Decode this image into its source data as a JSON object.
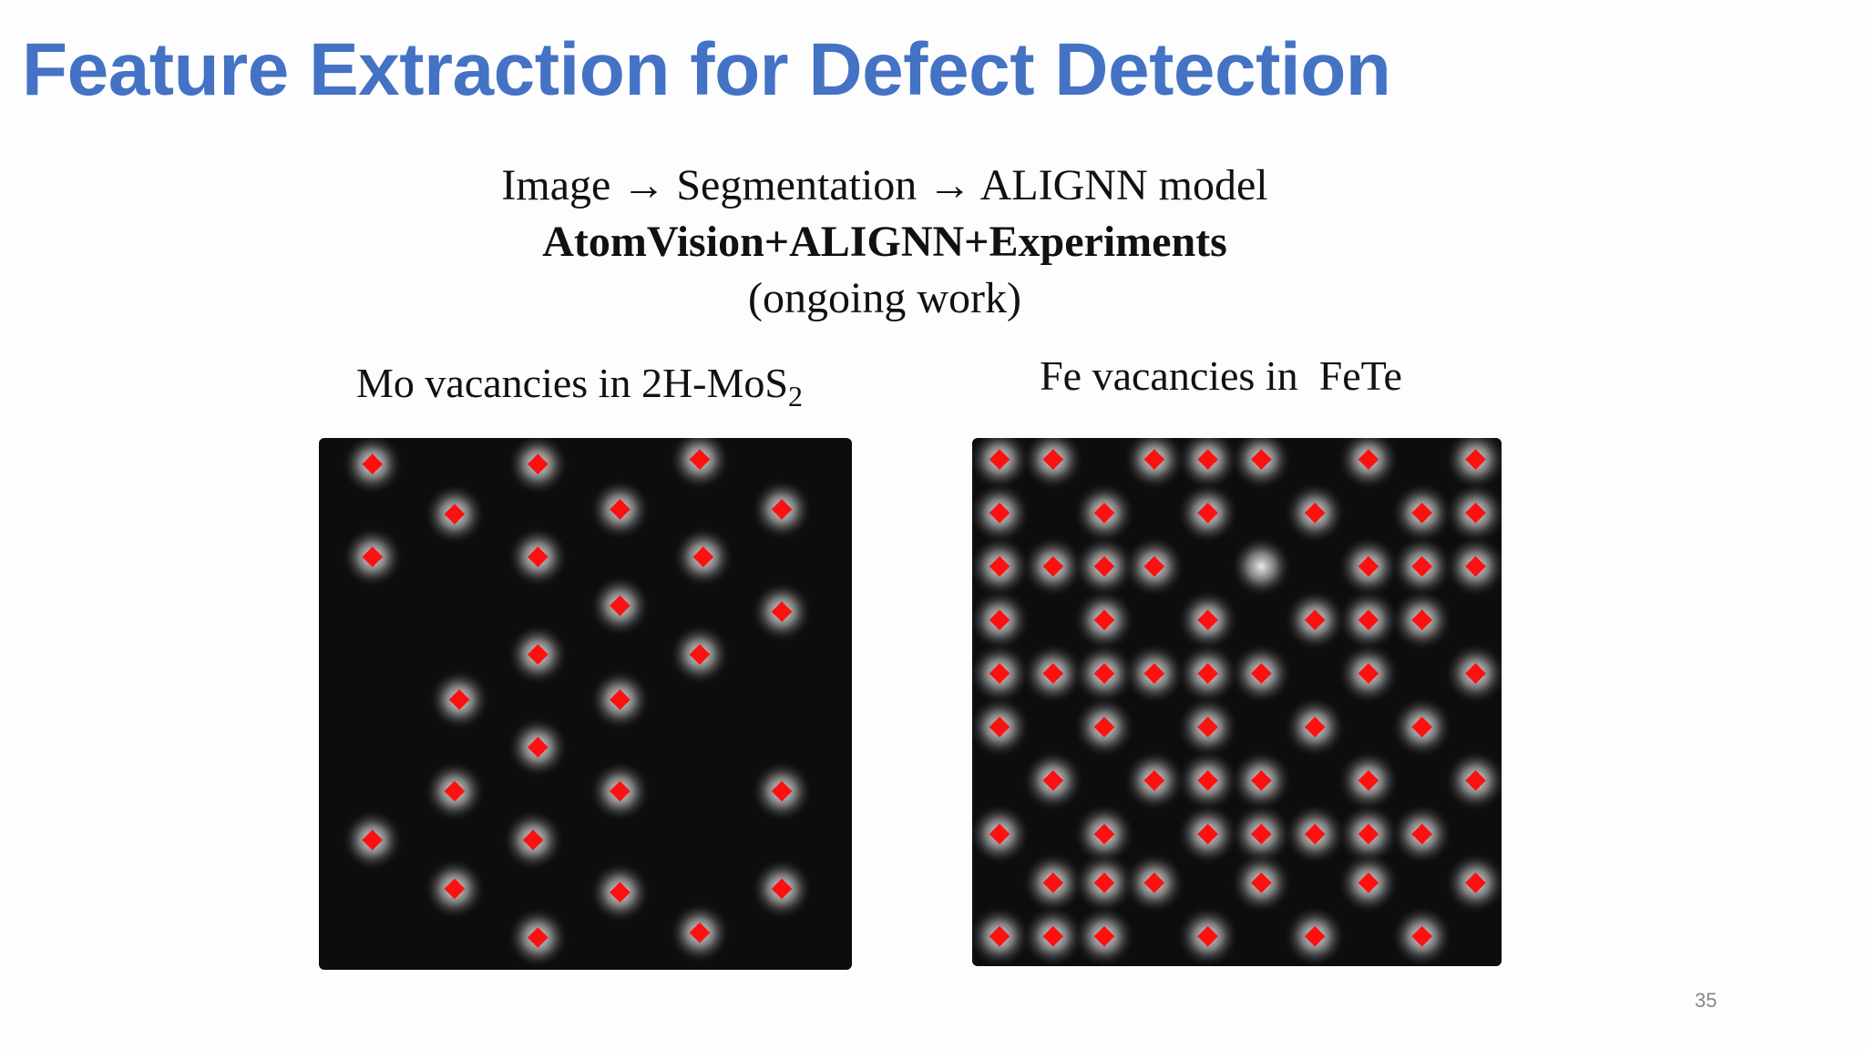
{
  "title": "Feature Extraction for Defect Detection",
  "subtitle_lines": [
    "Image → Segmentation → ALIGNN model",
    "AtomVision+ALIGNN+Experiments",
    "(ongoing work)"
  ],
  "panels": [
    {
      "caption": "Mo vacancies in 2H-MoS",
      "subscript": "2"
    },
    {
      "caption": "Fe vacancies in  FeTe"
    }
  ],
  "page_number": "35"
}
